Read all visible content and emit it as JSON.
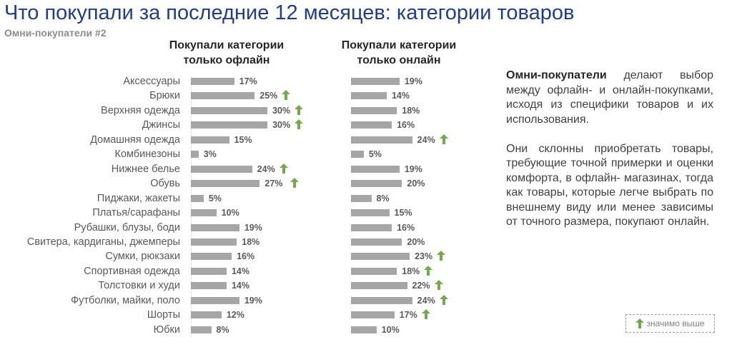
{
  "header": {
    "title": "Что покупали за последние 12 месяцев: категории товаров",
    "subtitle": "Омни-покупатели #2"
  },
  "chart_data": {
    "type": "bar",
    "orientation": "horizontal",
    "unit": "%",
    "categories": [
      "Аксессуары",
      "Брюки",
      "Верхняя одежда",
      "Джинсы",
      "Домашняя одежда",
      "Комбинезоны",
      "Нижнее белье",
      "Обувь",
      "Пиджаки, жакеты",
      "Платья/сарафаны",
      "Рубашки, блузы, боди",
      "Свитера, кардиганы, джемперы",
      "Сумки, рюкзаки",
      "Спортивная одежда",
      "Толстовки и худи",
      "Футболки, майки, поло",
      "Шорты",
      "Юбки"
    ],
    "series": [
      {
        "name": "Покупали категории только офлайн",
        "title_lines": [
          "Покупали категории",
          "только офлайн"
        ],
        "values": [
          17,
          25,
          30,
          30,
          15,
          3,
          24,
          27,
          5,
          10,
          19,
          18,
          16,
          14,
          14,
          19,
          12,
          8
        ],
        "significantly_higher": [
          false,
          true,
          true,
          true,
          false,
          false,
          true,
          true,
          false,
          false,
          false,
          false,
          false,
          false,
          false,
          false,
          false,
          false
        ]
      },
      {
        "name": "Покупали категории только онлайн",
        "title_lines": [
          "Покупали категории",
          "только онлайн"
        ],
        "values": [
          19,
          14,
          18,
          16,
          24,
          5,
          19,
          20,
          8,
          15,
          16,
          20,
          23,
          18,
          22,
          24,
          17,
          10
        ],
        "significantly_higher": [
          false,
          false,
          false,
          false,
          true,
          false,
          false,
          false,
          false,
          false,
          false,
          false,
          true,
          true,
          true,
          true,
          true,
          false
        ]
      }
    ],
    "legend": {
      "label": "значимо выше",
      "placement": "bottom-right"
    },
    "colors": {
      "bar": "#a6a6a6",
      "arrow": "#70ad47"
    }
  },
  "commentary": {
    "p1_bold": "Омни-покупатели",
    "p1_rest": " делают выбор между офлайн- и онлайн-покупками, исходя из специфики товаров и их использования.",
    "p2": "Они склонны приобретать товары, требующие точной примерки и оценки комфорта, в офлайн- магазинах, тогда как товары, которые легче выбрать по внешнему виду или менее зависимы от точного размера, покупают онлайн."
  }
}
